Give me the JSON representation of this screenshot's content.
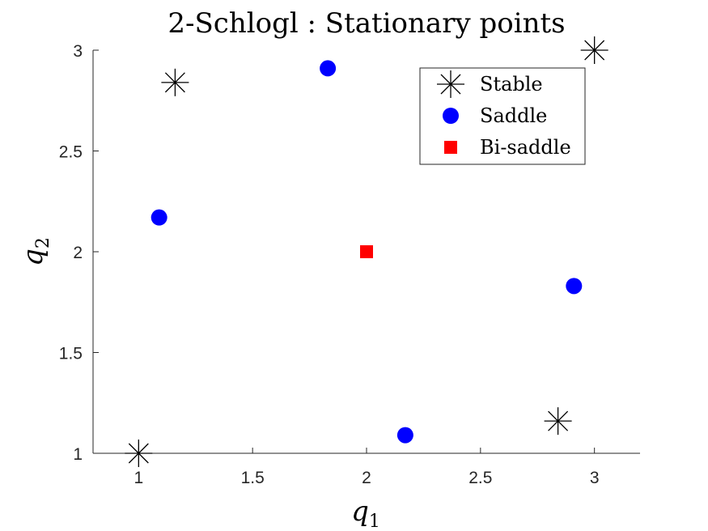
{
  "chart_data": {
    "type": "scatter",
    "title": "2-Schlogl : Stationary points",
    "xlabel": {
      "base": "q",
      "sub": "1"
    },
    "ylabel": {
      "base": "q",
      "sub": "2"
    },
    "xlim": [
      0.8,
      3.2
    ],
    "ylim": [
      1,
      3
    ],
    "xticks": [
      1,
      1.5,
      2,
      2.5,
      3
    ],
    "yticks": [
      1,
      1.5,
      2,
      2.5,
      3
    ],
    "xtick_labels": [
      "1",
      "1.5",
      "2",
      "2.5",
      "3"
    ],
    "ytick_labels": [
      "1",
      "1.5",
      "2",
      "2.5",
      "3"
    ],
    "grid": false,
    "legend_position": "top-right",
    "series": [
      {
        "name": "Stable",
        "marker": "asterisk",
        "color": "#000000",
        "points": [
          [
            1.0,
            1.0
          ],
          [
            1.16,
            2.84
          ],
          [
            2.84,
            1.16
          ],
          [
            3.0,
            3.0
          ]
        ]
      },
      {
        "name": "Saddle",
        "marker": "circle",
        "color": "#0000ff",
        "points": [
          [
            1.09,
            2.17
          ],
          [
            1.83,
            2.91
          ],
          [
            2.17,
            1.09
          ],
          [
            2.91,
            1.83
          ]
        ]
      },
      {
        "name": "Bi-saddle",
        "marker": "square",
        "color": "#ff0000",
        "points": [
          [
            2.0,
            2.0
          ]
        ]
      }
    ]
  }
}
